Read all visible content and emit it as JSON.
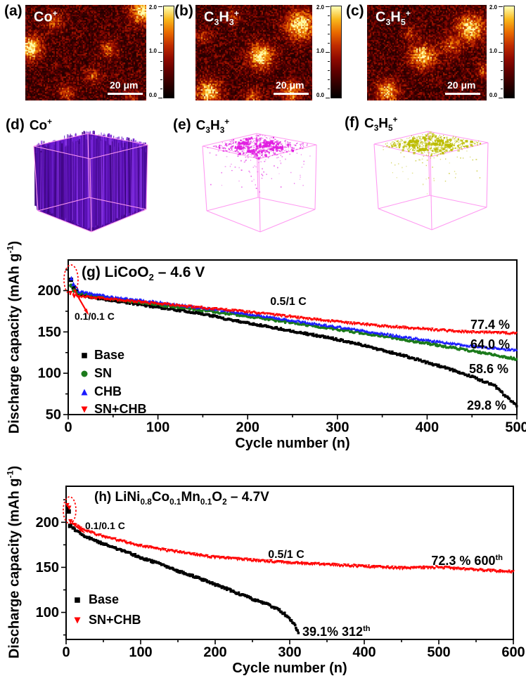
{
  "colormap_stops": [
    "#000000",
    "#2e0000",
    "#5e0000",
    "#900a00",
    "#c02c00",
    "#e96a00",
    "#f9b81c",
    "#ffffb4"
  ],
  "row1": {
    "colorbar_ticks": [
      "2.0",
      "1.0",
      "0.0"
    ],
    "panels": [
      {
        "label": "(a)",
        "ion": "Co^{+}",
        "scalebar": "20 μm"
      },
      {
        "label": "(b)",
        "ion": "C_{3}H_{3}^{+}",
        "scalebar": "20 μm"
      },
      {
        "label": "(c)",
        "ion": "C_{3}H_{5}^{+}",
        "scalebar": "20 μm"
      }
    ]
  },
  "row2": {
    "wireframe_color": "#ff9af2",
    "panels": [
      {
        "label": "(d)",
        "ion": "Co^{+}",
        "color": "#5a10b5",
        "mode": "solid"
      },
      {
        "label": "(e)",
        "ion": "C_{3}H_{3}^{+}",
        "color": "#e11fe1",
        "mode": "scatter"
      },
      {
        "label": "(f)",
        "ion": "C_{3}H_{5}^{+}",
        "color": "#bcbc00",
        "mode": "scatter"
      }
    ]
  },
  "chart_data": [
    {
      "panel": "g",
      "type": "scatter",
      "title": "(g) LiCoO_{2} – 4.6 V",
      "xlabel": "Cycle number (n)",
      "ylabel": "Discharge capacity (mAh g^{-1})",
      "xlim": [
        0,
        500
      ],
      "ylim": [
        50,
        237
      ],
      "xticks": [
        0,
        100,
        200,
        300,
        400,
        500
      ],
      "yticks": [
        50,
        100,
        150,
        200
      ],
      "grid": false,
      "legend_position": "lower-left",
      "rate_annotations": [
        "0.1/0.1 C",
        "0.5/1 C"
      ],
      "series": [
        {
          "name": "Base",
          "color": "#000000",
          "marker": "square",
          "retention_label": "29.8 %",
          "points": [
            [
              3,
              213
            ],
            [
              6,
              204
            ],
            [
              12,
              196
            ],
            [
              25,
              192
            ],
            [
              50,
              188
            ],
            [
              75,
              184
            ],
            [
              100,
              180
            ],
            [
              125,
              176
            ],
            [
              150,
              172
            ],
            [
              175,
              166
            ],
            [
              200,
              161
            ],
            [
              225,
              156
            ],
            [
              250,
              151
            ],
            [
              275,
              146
            ],
            [
              300,
              141
            ],
            [
              325,
              135
            ],
            [
              350,
              128
            ],
            [
              375,
              121
            ],
            [
              400,
              113
            ],
            [
              425,
              105
            ],
            [
              450,
              96
            ],
            [
              475,
              85
            ],
            [
              500,
              60
            ]
          ]
        },
        {
          "name": "SN",
          "color": "#1b7a1b",
          "marker": "circle",
          "retention_label": "58.6 %",
          "points": [
            [
              3,
              206
            ],
            [
              6,
              200
            ],
            [
              12,
              197
            ],
            [
              50,
              190
            ],
            [
              100,
              183
            ],
            [
              150,
              176
            ],
            [
              200,
              169
            ],
            [
              250,
              161
            ],
            [
              300,
              153
            ],
            [
              350,
              145
            ],
            [
              400,
              136
            ],
            [
              450,
              127
            ],
            [
              480,
              121
            ],
            [
              500,
              117
            ]
          ]
        },
        {
          "name": "CHB",
          "color": "#1a1aff",
          "marker": "triangle-up",
          "retention_label": "64.0 %",
          "points": [
            [
              3,
              215
            ],
            [
              6,
              208
            ],
            [
              12,
              199
            ],
            [
              50,
              192
            ],
            [
              100,
              186
            ],
            [
              150,
              179
            ],
            [
              200,
              172
            ],
            [
              250,
              164
            ],
            [
              300,
              156
            ],
            [
              350,
              148
            ],
            [
              400,
              140
            ],
            [
              450,
              133
            ],
            [
              480,
              130
            ],
            [
              500,
              128
            ]
          ]
        },
        {
          "name": "SN+CHB",
          "color": "#ff0000",
          "marker": "triangle-down",
          "retention_label": "77.4 %",
          "points": [
            [
              3,
              197
            ],
            [
              6,
              193
            ],
            [
              12,
              193
            ],
            [
              50,
              189
            ],
            [
              100,
              184
            ],
            [
              150,
              179
            ],
            [
              200,
              174
            ],
            [
              250,
              168
            ],
            [
              300,
              162
            ],
            [
              350,
              157
            ],
            [
              400,
              153
            ],
            [
              440,
              150
            ],
            [
              470,
              149
            ],
            [
              500,
              148
            ]
          ]
        }
      ]
    },
    {
      "panel": "h",
      "type": "scatter",
      "title": "(h) LiNi_{0.8}Co_{0.1}Mn_{0.1}O_{2} – 4.7V",
      "xlabel": "Cycle number (n)",
      "ylabel": "Discharge capacity (mAh g^{-1})",
      "xlim": [
        0,
        600
      ],
      "ylim": [
        70,
        240
      ],
      "xticks": [
        0,
        100,
        200,
        300,
        400,
        500,
        600
      ],
      "yticks": [
        100,
        150,
        200
      ],
      "grid": false,
      "legend_position": "lower-left",
      "rate_annotations": [
        "0.1/0.1 C",
        "0.5/1 C"
      ],
      "series": [
        {
          "name": "Base",
          "color": "#000000",
          "marker": "square",
          "retention_label": "39.1% 312^{th}",
          "points": [
            [
              2,
              216
            ],
            [
              4,
              212
            ],
            [
              6,
              196
            ],
            [
              12,
              192
            ],
            [
              25,
              185
            ],
            [
              50,
              176
            ],
            [
              75,
              169
            ],
            [
              100,
              161
            ],
            [
              125,
              154
            ],
            [
              150,
              146
            ],
            [
              175,
              139
            ],
            [
              200,
              131
            ],
            [
              225,
              123
            ],
            [
              250,
              115
            ],
            [
              270,
              109
            ],
            [
              285,
              103
            ],
            [
              295,
              97
            ],
            [
              303,
              90
            ],
            [
              308,
              84
            ],
            [
              312,
              77
            ]
          ]
        },
        {
          "name": "SN+CHB",
          "color": "#ff0000",
          "marker": "triangle-down",
          "retention_label": "72.3 % 600^{th}",
          "points": [
            [
              2,
              219
            ],
            [
              4,
              216
            ],
            [
              6,
              201
            ],
            [
              12,
              197
            ],
            [
              25,
              191
            ],
            [
              50,
              184
            ],
            [
              75,
              179
            ],
            [
              100,
              174
            ],
            [
              125,
              170
            ],
            [
              150,
              167
            ],
            [
              175,
              164
            ],
            [
              200,
              161
            ],
            [
              250,
              158
            ],
            [
              300,
              155
            ],
            [
              350,
              153
            ],
            [
              400,
              151
            ],
            [
              450,
              149
            ],
            [
              500,
              150
            ],
            [
              550,
              147
            ],
            [
              600,
              145
            ]
          ]
        }
      ]
    }
  ]
}
